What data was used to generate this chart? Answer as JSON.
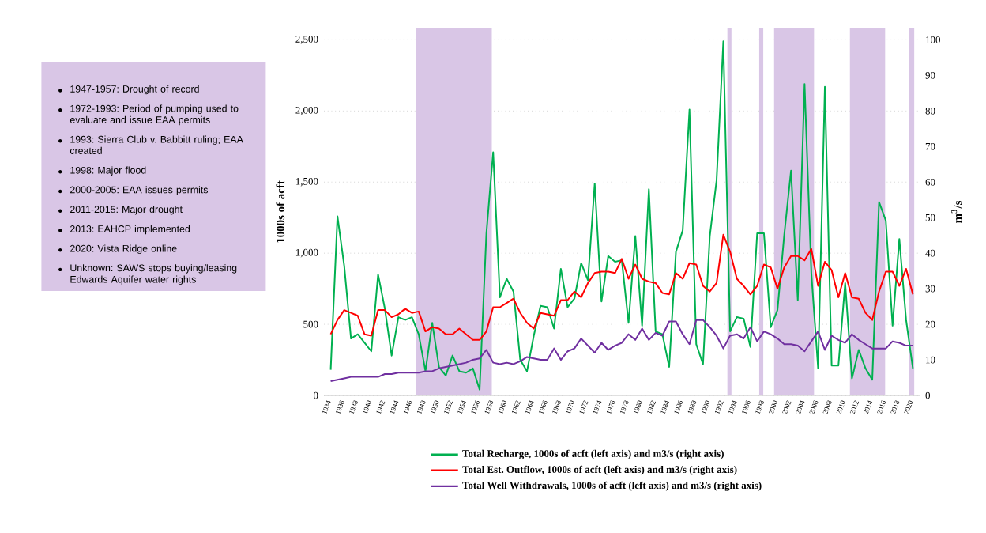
{
  "chart_data": {
    "type": "line",
    "annotations": [
      "1947-1957: Drought of record",
      "1972-1993: Period of pumping used to evaluate and issue EAA permits",
      "1993: Sierra Club v. Babbitt ruling; EAA created",
      "1998: Major flood",
      "2000-2005: EAA issues permits",
      "2011-2015: Major drought",
      "2013: EAHCP implemented",
      "2020: Vista Ridge online",
      "Unknown: SAWS stops buying/leasing Edwards Aquifer water rights"
    ],
    "ylabel": "1000s of acft",
    "y2label": "m$^{3}$/s",
    "x": [
      1934,
      1935,
      1936,
      1937,
      1938,
      1939,
      1940,
      1941,
      1942,
      1943,
      1944,
      1945,
      1946,
      1947,
      1948,
      1949,
      1950,
      1951,
      1952,
      1953,
      1954,
      1955,
      1956,
      1957,
      1958,
      1959,
      1960,
      1961,
      1962,
      1963,
      1964,
      1965,
      1966,
      1967,
      1968,
      1969,
      1970,
      1971,
      1972,
      1973,
      1974,
      1975,
      1976,
      1977,
      1978,
      1979,
      1980,
      1981,
      1982,
      1983,
      1984,
      1985,
      1986,
      1987,
      1988,
      1989,
      1990,
      1991,
      1992,
      1993,
      1994,
      1995,
      1996,
      1997,
      1998,
      1999,
      2000,
      2001,
      2002,
      2003,
      2004,
      2005,
      2006,
      2007,
      2008,
      2009,
      2010,
      2011,
      2012,
      2013,
      2014,
      2015,
      2016,
      2017,
      2018,
      2019,
      2020
    ],
    "xlim": [
      1933,
      2021
    ],
    "xticks": [
      1934,
      1936,
      1938,
      1940,
      1942,
      1944,
      1946,
      1948,
      1950,
      1952,
      1954,
      1956,
      1958,
      1960,
      1962,
      1964,
      1966,
      1968,
      1970,
      1972,
      1974,
      1976,
      1978,
      1980,
      1982,
      1984,
      1986,
      1988,
      1990,
      1992,
      1994,
      1996,
      1998,
      2000,
      2002,
      2004,
      2006,
      2008,
      2010,
      2012,
      2014,
      2016,
      2018,
      2020
    ],
    "ylim": [
      0,
      2580
    ],
    "yticks": [
      {
        "value": 0,
        "label": "0"
      },
      {
        "value": 500,
        "label": "500"
      },
      {
        "value": 1000,
        "label": "1,000"
      },
      {
        "value": 1500,
        "label": "1,500"
      },
      {
        "value": 2000,
        "label": "2,000"
      },
      {
        "value": 2500,
        "label": "2,500"
      }
    ],
    "y2lim": [
      0,
      103.2
    ],
    "y2ticks": [
      0,
      10,
      20,
      30,
      40,
      50,
      60,
      70,
      80,
      90,
      100
    ],
    "grid": "y",
    "legend": "bottom",
    "bands": [
      {
        "axis": "x",
        "from": 1946.6,
        "to": 1957.8,
        "color": "#d9c6e6"
      },
      {
        "axis": "x",
        "from": 1992.6,
        "to": 1993.2,
        "color": "#d9c6e6"
      },
      {
        "axis": "x",
        "from": 1997.3,
        "to": 1997.9,
        "color": "#d9c6e6"
      },
      {
        "axis": "x",
        "from": 1999.5,
        "to": 2005.4,
        "color": "#d9c6e6"
      },
      {
        "axis": "x",
        "from": 2010.7,
        "to": 2015.9,
        "color": "#d9c6e6"
      },
      {
        "axis": "x",
        "from": 2019.4,
        "to": 2020.2,
        "color": "#d9c6e6"
      }
    ],
    "series": [
      {
        "name": "Total Recharge, 1000s of acft (left axis) and m3/s (right axis)",
        "color": "#00b050",
        "values": [
          180,
          1260,
          910,
          400,
          430,
          370,
          310,
          850,
          610,
          280,
          550,
          530,
          550,
          430,
          170,
          510,
          200,
          140,
          280,
          170,
          160,
          190,
          40,
          1140,
          1710,
          690,
          820,
          730,
          250,
          170,
          420,
          630,
          620,
          470,
          890,
          620,
          680,
          930,
          810,
          1490,
          660,
          980,
          940,
          950,
          510,
          1120,
          490,
          1450,
          450,
          430,
          200,
          1010,
          1160,
          2010,
          360,
          220,
          1120,
          1510,
          2490,
          450,
          550,
          540,
          340,
          1140,
          1140,
          480,
          600,
          1130,
          1580,
          670,
          2190,
          860,
          190,
          2170,
          210,
          210,
          790,
          120,
          320,
          190,
          110,
          1360,
          1230,
          490,
          1100,
          530,
          190
        ]
      },
      {
        "name": "Total Est. Outflow, 1000s of acft (left axis) and m3/s (right axis)",
        "color": "#ff0000",
        "values": [
          430,
          530,
          600,
          580,
          560,
          430,
          420,
          600,
          600,
          550,
          570,
          610,
          580,
          590,
          450,
          480,
          470,
          430,
          430,
          470,
          430,
          390,
          390,
          450,
          620,
          620,
          650,
          680,
          580,
          510,
          470,
          580,
          570,
          560,
          670,
          670,
          730,
          690,
          790,
          860,
          870,
          870,
          860,
          960,
          820,
          920,
          820,
          800,
          790,
          720,
          710,
          860,
          820,
          930,
          920,
          770,
          730,
          790,
          1130,
          1010,
          820,
          770,
          710,
          770,
          920,
          900,
          750,
          900,
          980,
          980,
          950,
          1030,
          770,
          940,
          880,
          690,
          860,
          690,
          680,
          580,
          530,
          730,
          870,
          870,
          770,
          890,
          710
        ]
      },
      {
        "name": "Total Well Withdrawals, 1000s of acft (left axis) and m3/s (right axis)",
        "color": "#7030a0",
        "values": [
          100,
          110,
          120,
          130,
          130,
          130,
          130,
          130,
          150,
          150,
          160,
          160,
          160,
          160,
          170,
          170,
          190,
          200,
          210,
          220,
          230,
          250,
          260,
          320,
          230,
          220,
          230,
          220,
          240,
          270,
          260,
          250,
          250,
          330,
          250,
          310,
          330,
          400,
          350,
          300,
          370,
          320,
          350,
          370,
          430,
          390,
          470,
          390,
          440,
          420,
          520,
          520,
          430,
          360,
          530,
          530,
          480,
          420,
          330,
          420,
          430,
          400,
          480,
          380,
          450,
          430,
          400,
          360,
          360,
          350,
          310,
          380,
          450,
          320,
          420,
          390,
          370,
          430,
          390,
          360,
          330,
          330,
          330,
          380,
          370,
          350,
          350
        ]
      }
    ]
  }
}
